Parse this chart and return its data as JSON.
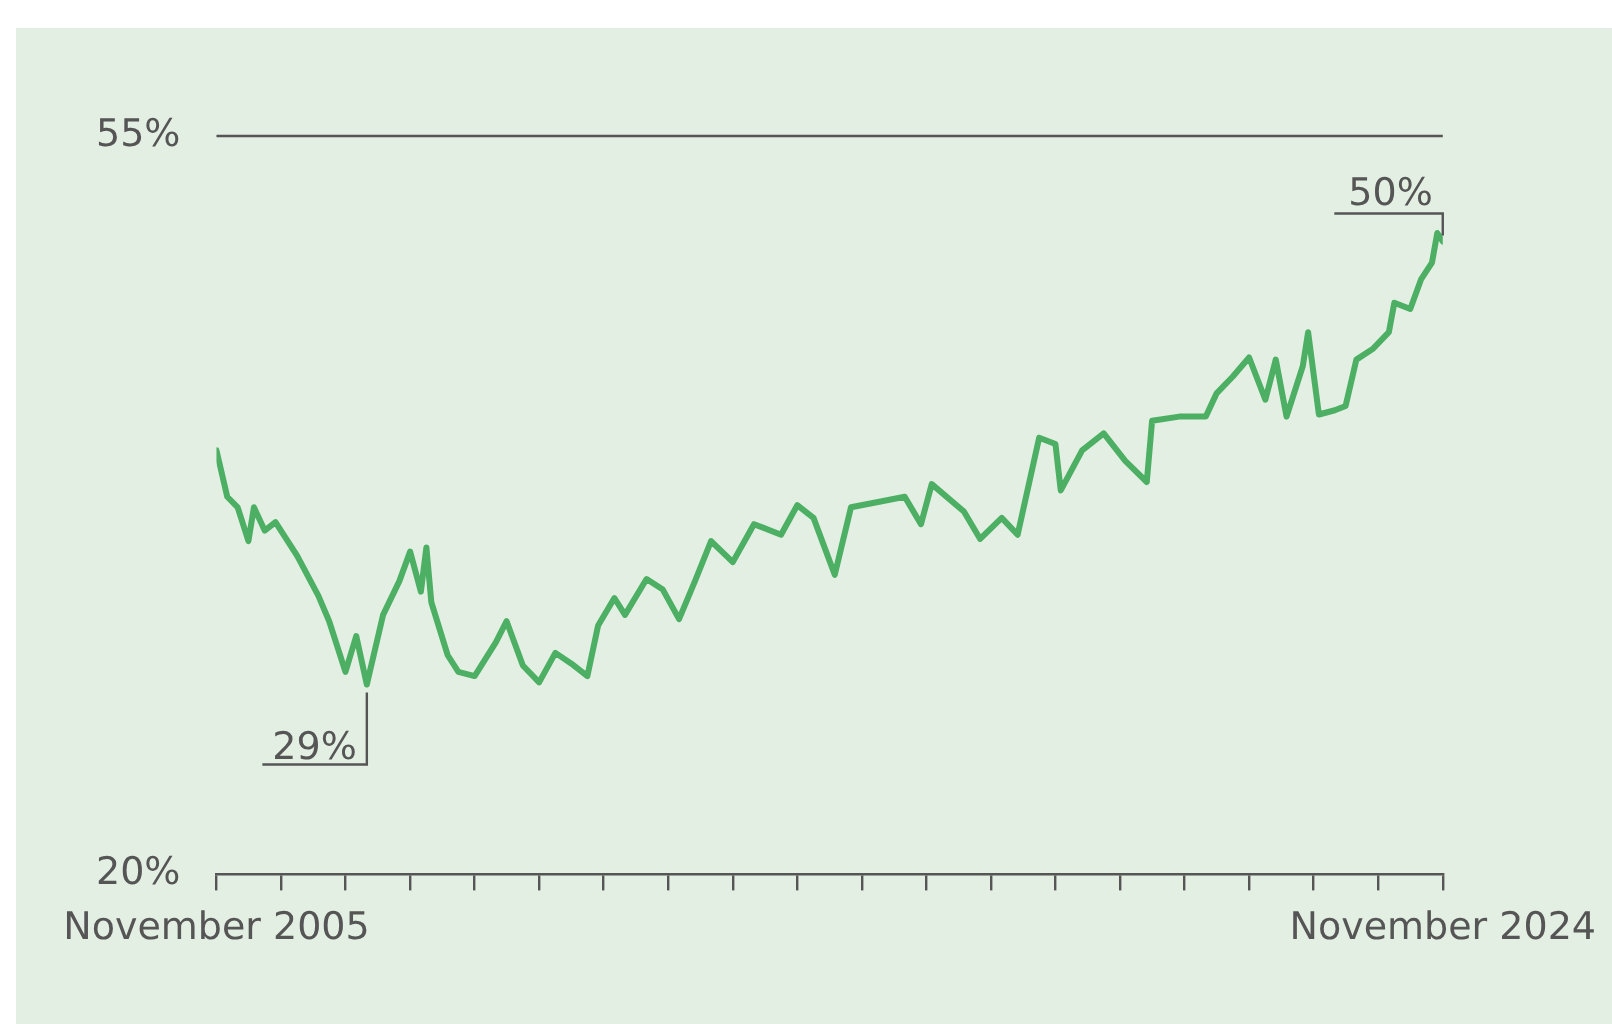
{
  "chart_data": {
    "type": "line",
    "x": [
      "2005-11",
      "2006-01",
      "2006-03",
      "2006-05",
      "2006-06",
      "2006-08",
      "2006-10",
      "2007-02",
      "2007-06",
      "2007-08",
      "2007-11",
      "2008-01",
      "2008-03",
      "2008-06",
      "2008-09",
      "2008-11",
      "2009-01",
      "2009-02",
      "2009-03",
      "2009-06",
      "2009-08",
      "2009-11",
      "2010-03",
      "2010-05",
      "2010-08",
      "2010-11",
      "2011-02",
      "2011-05",
      "2011-08",
      "2011-10",
      "2012-01",
      "2012-03",
      "2012-07",
      "2012-10",
      "2013-01",
      "2013-04",
      "2013-07",
      "2013-11",
      "2014-03",
      "2014-08",
      "2014-11",
      "2015-02",
      "2015-06",
      "2015-09",
      "2016-03",
      "2016-07",
      "2016-10",
      "2016-12",
      "2017-06",
      "2017-09",
      "2018-01",
      "2018-04",
      "2018-08",
      "2018-11",
      "2018-12",
      "2019-04",
      "2019-08",
      "2019-12",
      "2020-04",
      "2020-05",
      "2020-10",
      "2021-03",
      "2021-05",
      "2021-08",
      "2021-11",
      "2022-02",
      "2022-04",
      "2022-06",
      "2022-09",
      "2022-10",
      "2022-12",
      "2023-03",
      "2023-05",
      "2023-07",
      "2023-10",
      "2024-01",
      "2024-02",
      "2024-05",
      "2024-07",
      "2024-09",
      "2024-10",
      "2024-11"
    ],
    "series": [
      {
        "color": "#4caf63",
        "values": [
          40.1,
          37.9,
          37.4,
          35.8,
          37.4,
          36.3,
          36.7,
          35.1,
          33.2,
          32.0,
          29.6,
          31.3,
          29.0,
          32.3,
          33.9,
          35.3,
          33.4,
          35.5,
          32.9,
          30.4,
          29.6,
          29.4,
          31.0,
          32.0,
          29.9,
          29.1,
          30.5,
          30.0,
          29.4,
          31.8,
          33.1,
          32.3,
          34.0,
          33.5,
          32.1,
          33.9,
          35.8,
          34.8,
          36.6,
          36.1,
          37.5,
          36.9,
          34.2,
          37.4,
          37.7,
          37.9,
          36.6,
          38.5,
          37.2,
          35.9,
          36.9,
          36.1,
          40.7,
          40.4,
          38.2,
          40.1,
          40.9,
          39.6,
          38.6,
          41.5,
          41.7,
          41.7,
          42.8,
          43.6,
          44.5,
          42.5,
          44.4,
          41.7,
          44.1,
          45.7,
          41.8,
          42.0,
          42.2,
          44.4,
          44.9,
          45.7,
          47.1,
          46.8,
          48.2,
          49.0,
          50.4,
          50.0
        ]
      }
    ],
    "xlim": [
      "2005-11",
      "2024-11"
    ],
    "xticks": [
      {
        "value": "2005-11",
        "label": "November 2005"
      },
      {
        "value": "2006-11",
        "label": null
      },
      {
        "value": "2007-11",
        "label": null
      },
      {
        "value": "2008-11",
        "label": null
      },
      {
        "value": "2009-11",
        "label": null
      },
      {
        "value": "2010-11",
        "label": null
      },
      {
        "value": "2011-11",
        "label": null
      },
      {
        "value": "2012-11",
        "label": null
      },
      {
        "value": "2013-11",
        "label": null
      },
      {
        "value": "2014-11",
        "label": null
      },
      {
        "value": "2015-11",
        "label": null
      },
      {
        "value": "2016-11",
        "label": null
      },
      {
        "value": "2017-11",
        "label": null
      },
      {
        "value": "2018-11",
        "label": null
      },
      {
        "value": "2019-11",
        "label": null
      },
      {
        "value": "2020-11",
        "label": null
      },
      {
        "value": "2021-11",
        "label": null
      },
      {
        "value": "2022-11",
        "label": null
      },
      {
        "value": "2023-11",
        "label": null
      },
      {
        "value": "2024-11",
        "label": "November 2024"
      }
    ],
    "ylim": [
      20,
      55
    ],
    "yticks": [
      {
        "value": 20,
        "label": "20%"
      },
      {
        "value": 55,
        "label": "55%"
      }
    ],
    "ref_lines": [
      {
        "axis": "y",
        "value": 55
      }
    ],
    "legend": false,
    "marker": "none",
    "line_style": "solid",
    "annotations": [
      {
        "text": "29%",
        "x": "2008-03",
        "y": 29.0
      },
      {
        "text": "50%",
        "x": "2024-11",
        "y": 50.0
      }
    ]
  }
}
